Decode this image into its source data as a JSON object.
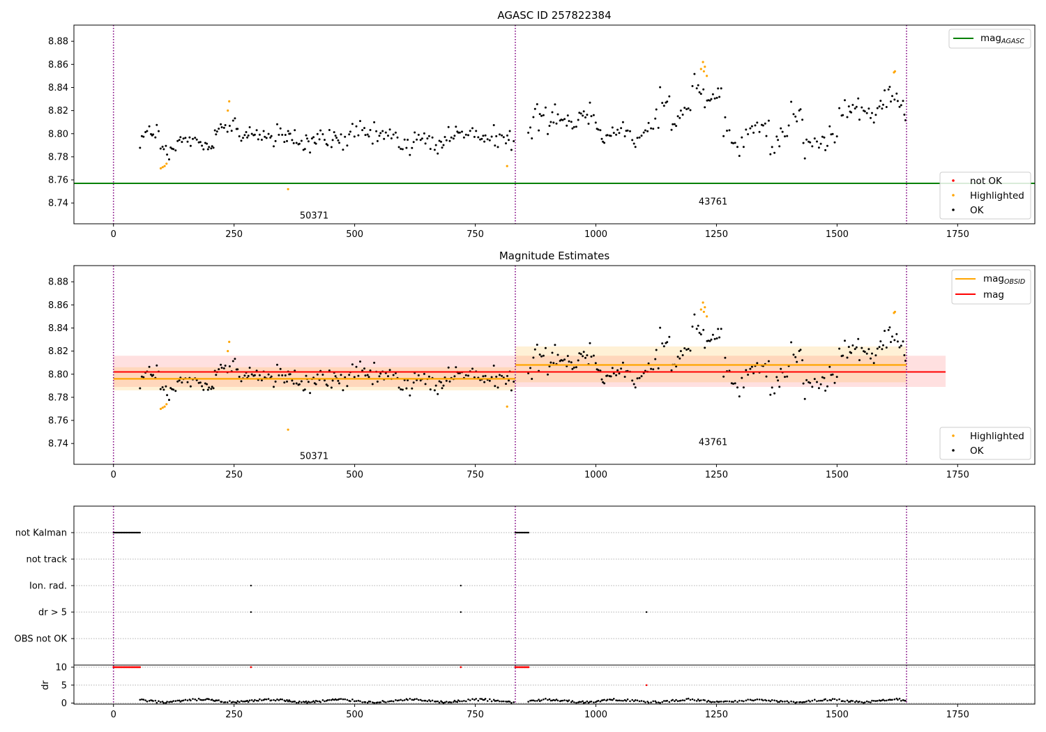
{
  "chart_data": [
    {
      "type": "scatter",
      "title": "AGASC ID 257822384",
      "xlim": [
        -82,
        1910
      ],
      "ylim": [
        8.722,
        8.894
      ],
      "xticks": [
        0,
        250,
        500,
        750,
        1000,
        1250,
        1500,
        1750
      ],
      "yticks": [
        8.74,
        8.76,
        8.78,
        8.8,
        8.82,
        8.84,
        8.86,
        8.88
      ],
      "vlines": [
        0,
        833,
        1644
      ],
      "obsid_labels": [
        {
          "x": 416,
          "y": 8.729,
          "text": "50371"
        },
        {
          "x": 1243,
          "y": 8.741,
          "text": "43761"
        }
      ],
      "mag_agasc": 8.757,
      "legends": [
        {
          "position": "upper right",
          "entries": [
            {
              "label": "mag",
              "sub": "AGASC",
              "color": "#008000",
              "kind": "line"
            }
          ]
        },
        {
          "position": "lower right",
          "entries": [
            {
              "label": "not OK",
              "color": "#ff0000",
              "kind": "point"
            },
            {
              "label": "Highlighted",
              "color": "#ffa500",
              "kind": "point"
            },
            {
              "label": "OK",
              "color": "#000000",
              "kind": "point"
            }
          ]
        }
      ],
      "highlighted_points": [
        [
          98,
          8.77
        ],
        [
          102,
          8.771
        ],
        [
          106,
          8.772
        ],
        [
          110,
          8.774
        ],
        [
          240,
          8.828
        ],
        [
          237,
          8.82
        ],
        [
          362,
          8.752
        ],
        [
          816,
          8.772
        ],
        [
          1218,
          8.856
        ],
        [
          1222,
          8.862
        ],
        [
          1226,
          8.858
        ],
        [
          1224,
          8.854
        ],
        [
          1230,
          8.85
        ],
        [
          1618,
          8.853
        ],
        [
          1620,
          8.854
        ]
      ],
      "not_ok_points": [],
      "ok_segments": [
        {
          "x_start": 55,
          "x_end": 830,
          "step": 3.4,
          "base": 8.796,
          "wiggle_amp": 0.006,
          "noise": 0.009
        },
        {
          "x_start": 860,
          "x_end": 1642,
          "step": 3.6,
          "base": 8.807,
          "wiggle_amp": 0.014,
          "noise": 0.009
        }
      ]
    },
    {
      "type": "scatter",
      "title": "Magnitude Estimates",
      "xlim": [
        -82,
        1910
      ],
      "ylim": [
        8.722,
        8.894
      ],
      "xticks": [
        0,
        250,
        500,
        750,
        1000,
        1250,
        1500,
        1750
      ],
      "yticks": [
        8.74,
        8.76,
        8.78,
        8.8,
        8.82,
        8.84,
        8.86,
        8.88
      ],
      "vlines": [
        0,
        833,
        1644
      ],
      "obsid_labels": [
        {
          "x": 416,
          "y": 8.729,
          "text": "50371"
        },
        {
          "x": 1243,
          "y": 8.741,
          "text": "43761"
        }
      ],
      "mag": {
        "value": 8.802,
        "lo": 8.789,
        "hi": 8.816,
        "x_start": 0,
        "x_end": 1725,
        "color": "#ff0000"
      },
      "mag_obsid": [
        {
          "x_start": 0,
          "x_end": 833,
          "value": 8.796,
          "lo": 8.786,
          "hi": 8.806
        },
        {
          "x_start": 833,
          "x_end": 1644,
          "value": 8.808,
          "lo": 8.793,
          "hi": 8.824
        }
      ],
      "legends": [
        {
          "position": "upper right",
          "entries": [
            {
              "label": "mag",
              "sub": "OBSID",
              "color": "#ffa500",
              "kind": "line"
            },
            {
              "label": "mag",
              "sub": "",
              "color": "#ff0000",
              "kind": "line"
            }
          ]
        },
        {
          "position": "lower right",
          "entries": [
            {
              "label": "Highlighted",
              "color": "#ffa500",
              "kind": "point"
            },
            {
              "label": "OK",
              "color": "#000000",
              "kind": "point"
            }
          ]
        }
      ]
    },
    {
      "type": "scatter",
      "title": "",
      "xlim": [
        -82,
        1910
      ],
      "xticks": [
        0,
        250,
        500,
        750,
        1000,
        1250,
        1500,
        1750
      ],
      "vlines": [
        0,
        833,
        1644
      ],
      "flag_rows": [
        "not Kalman",
        "not track",
        "Ion. rad.",
        "dr > 5",
        "OBS not OK"
      ],
      "flag_points": {
        "not Kalman": [
          [
            0,
            55
          ],
          [
            833,
            862
          ]
        ],
        "not track": [],
        "Ion. rad.": [
          [
            285,
            285
          ],
          [
            720,
            720
          ]
        ],
        "dr > 5": [
          [
            285,
            285
          ],
          [
            720,
            720
          ],
          [
            1105,
            1105
          ]
        ],
        "OBS not OK": []
      },
      "dr_ylabel": "dr",
      "dr_yticks": [
        0,
        5,
        10
      ],
      "dr_ylim": [
        -0.6,
        10.4
      ],
      "dr_capped": [
        [
          0,
          55
        ],
        [
          285,
          285
        ],
        [
          720,
          720
        ],
        [
          833,
          862
        ]
      ],
      "dr_outlier": [
        [
          1105,
          5
        ]
      ]
    }
  ]
}
